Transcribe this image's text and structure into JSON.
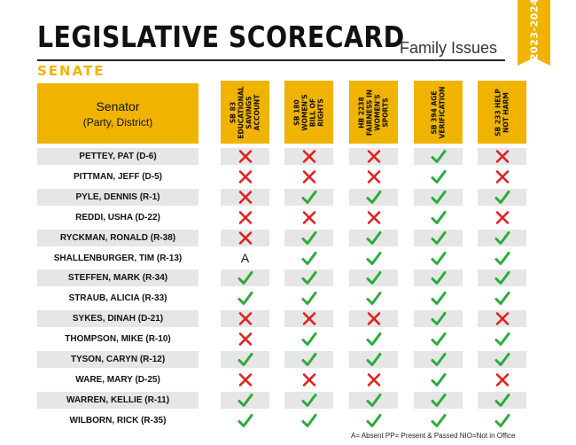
{
  "header": {
    "title": "LEGISLATIVE SCORECARD",
    "subtitle": "Family Issues",
    "section": "SENATE",
    "years": "2023-2024"
  },
  "table": {
    "senator_header": {
      "line1": "Senator",
      "line2": "(Party, District)"
    },
    "bills": [
      "SB 83 EDUCATIONAL SAVINGS ACCOUNT",
      "SB 180 WOMEN'S BILL OF RIGHTS",
      "HB 2238 FAIRNESS IN WOMEN'S SPORTS",
      "SB 394 AGE VERIFICATION",
      "SB 233 HELP NOT HARM"
    ],
    "rows": [
      {
        "name": "PETTEY, PAT (D-6)",
        "votes": [
          "x",
          "x",
          "x",
          "check",
          "x"
        ]
      },
      {
        "name": "PITTMAN, JEFF (D-5)",
        "votes": [
          "x",
          "x",
          "x",
          "check",
          "x"
        ]
      },
      {
        "name": "PYLE, DENNIS (R-1)",
        "votes": [
          "x",
          "check",
          "check",
          "check",
          "check"
        ]
      },
      {
        "name": "REDDI, USHA (D-22)",
        "votes": [
          "x",
          "x",
          "x",
          "check",
          "x"
        ]
      },
      {
        "name": "RYCKMAN, RONALD (R-38)",
        "votes": [
          "x",
          "check",
          "check",
          "check",
          "check"
        ]
      },
      {
        "name": "SHALLENBURGER, TIM (R-13)",
        "votes": [
          "A",
          "check",
          "check",
          "check",
          "check"
        ]
      },
      {
        "name": "STEFFEN, MARK (R-34)",
        "votes": [
          "check",
          "check",
          "check",
          "check",
          "check"
        ]
      },
      {
        "name": "STRAUB, ALICIA (R-33)",
        "votes": [
          "check",
          "check",
          "check",
          "check",
          "check"
        ]
      },
      {
        "name": "SYKES, DINAH (D-21)",
        "votes": [
          "x",
          "x",
          "x",
          "check",
          "x"
        ]
      },
      {
        "name": "THOMPSON, MIKE (R-10)",
        "votes": [
          "x",
          "check",
          "check",
          "check",
          "check"
        ]
      },
      {
        "name": "TYSON, CARYN (R-12)",
        "votes": [
          "check",
          "check",
          "check",
          "check",
          "check"
        ]
      },
      {
        "name": "WARE, MARY (D-25)",
        "votes": [
          "x",
          "x",
          "x",
          "check",
          "x"
        ]
      },
      {
        "name": "WARREN, KELLIE (R-11)",
        "votes": [
          "check",
          "check",
          "check",
          "check",
          "check"
        ]
      },
      {
        "name": "WILBORN, RICK (R-35)",
        "votes": [
          "check",
          "check",
          "check",
          "check",
          "check"
        ]
      }
    ]
  },
  "footer": {
    "legend": "A= Absent PP= Present & Passed NIO=Not in Office"
  },
  "colors": {
    "accent": "#f0b400",
    "check": "#2bab3c",
    "x": "#e02020",
    "row_shade": "#e6e6e6"
  }
}
